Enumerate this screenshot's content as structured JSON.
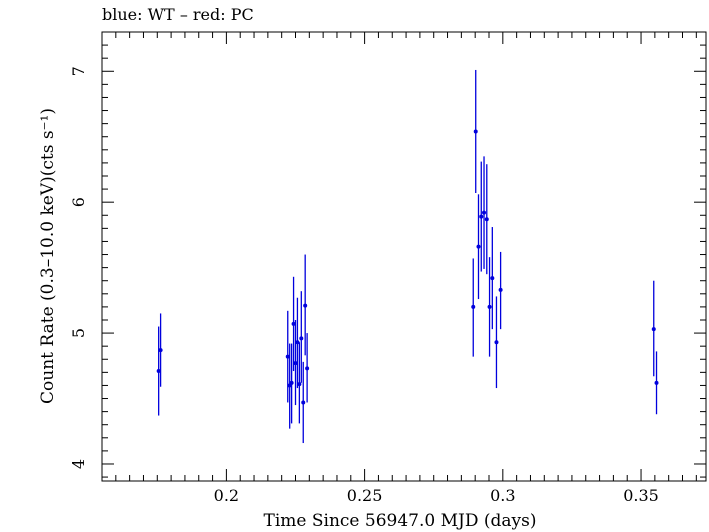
{
  "chart_data": {
    "type": "scatter",
    "title": "blue: WT – red: PC",
    "xlabel": "Time Since 56947.0 MJD (days)",
    "ylabel": "Count Rate (0.3–10.0 keV)(cts s⁻¹)",
    "xlim": [
      0.155,
      0.3735
    ],
    "ylim": [
      3.87,
      7.3
    ],
    "x_ticks": [
      0.2,
      0.25,
      0.3,
      0.35
    ],
    "x_tick_labels": [
      "0.2",
      "0.25",
      "0.3",
      "0.35"
    ],
    "y_ticks": [
      4,
      5,
      6,
      7
    ],
    "y_tick_labels": [
      "4",
      "5",
      "6",
      "7"
    ],
    "grid": false,
    "series": [
      {
        "name": "WT",
        "color": "#0000dd",
        "points": [
          {
            "x": 0.1755,
            "y": 4.71,
            "lo": 4.37,
            "hi": 5.05
          },
          {
            "x": 0.1762,
            "y": 4.87,
            "lo": 4.59,
            "hi": 5.15
          },
          {
            "x": 0.2222,
            "y": 4.82,
            "lo": 4.47,
            "hi": 5.17
          },
          {
            "x": 0.2229,
            "y": 4.6,
            "lo": 4.27,
            "hi": 4.92
          },
          {
            "x": 0.2236,
            "y": 4.62,
            "lo": 4.31,
            "hi": 4.92
          },
          {
            "x": 0.2243,
            "y": 5.07,
            "lo": 4.71,
            "hi": 5.43
          },
          {
            "x": 0.225,
            "y": 4.77,
            "lo": 4.45,
            "hi": 5.1
          },
          {
            "x": 0.2257,
            "y": 4.93,
            "lo": 4.58,
            "hi": 5.27
          },
          {
            "x": 0.2264,
            "y": 4.61,
            "lo": 4.31,
            "hi": 4.93
          },
          {
            "x": 0.2271,
            "y": 4.96,
            "lo": 4.62,
            "hi": 5.32
          },
          {
            "x": 0.2278,
            "y": 4.47,
            "lo": 4.16,
            "hi": 4.78
          },
          {
            "x": 0.2285,
            "y": 5.21,
            "lo": 4.83,
            "hi": 5.6
          },
          {
            "x": 0.2292,
            "y": 4.73,
            "lo": 4.47,
            "hi": 5.0
          },
          {
            "x": 0.2893,
            "y": 5.2,
            "lo": 4.82,
            "hi": 5.57
          },
          {
            "x": 0.2902,
            "y": 6.54,
            "lo": 6.07,
            "hi": 7.01
          },
          {
            "x": 0.2912,
            "y": 5.66,
            "lo": 5.26,
            "hi": 6.06
          },
          {
            "x": 0.2922,
            "y": 5.89,
            "lo": 5.47,
            "hi": 6.31
          },
          {
            "x": 0.2932,
            "y": 5.92,
            "lo": 5.49,
            "hi": 6.35
          },
          {
            "x": 0.2942,
            "y": 5.87,
            "lo": 5.45,
            "hi": 6.29
          },
          {
            "x": 0.2952,
            "y": 5.2,
            "lo": 4.82,
            "hi": 5.58
          },
          {
            "x": 0.2962,
            "y": 5.42,
            "lo": 5.03,
            "hi": 5.81
          },
          {
            "x": 0.2977,
            "y": 4.93,
            "lo": 4.58,
            "hi": 5.28
          },
          {
            "x": 0.2992,
            "y": 5.33,
            "lo": 5.03,
            "hi": 5.62
          },
          {
            "x": 0.3546,
            "y": 5.03,
            "lo": 4.67,
            "hi": 5.4
          },
          {
            "x": 0.3556,
            "y": 4.62,
            "lo": 4.38,
            "hi": 4.86
          }
        ]
      }
    ]
  }
}
